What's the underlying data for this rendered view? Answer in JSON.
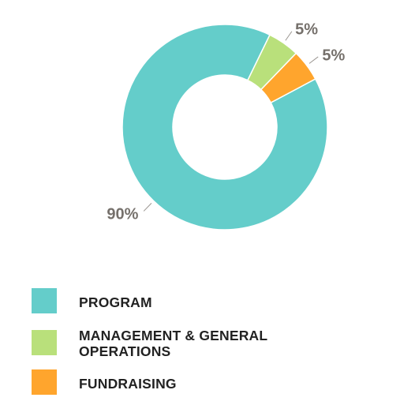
{
  "chart_data": {
    "type": "pie",
    "donut": true,
    "categories": [
      "PROGRAM",
      "MANAGEMENT & GENERAL OPERATIONS",
      "FUNDRAISING"
    ],
    "values": [
      90,
      5,
      5
    ],
    "value_labels": [
      "90%",
      "5%",
      "5%"
    ],
    "colors": [
      "#64cdca",
      "#b9e07b",
      "#ffa52d"
    ],
    "legend_position": "bottom-left",
    "title": "",
    "xlabel": "",
    "ylabel": ""
  },
  "legend": {
    "items": [
      {
        "label": "PROGRAM",
        "color": "#64cdca"
      },
      {
        "label": "MANAGEMENT & GENERAL OPERATIONS",
        "color": "#b9e07b"
      },
      {
        "label": "FUNDRAISING",
        "color": "#ffa52d"
      }
    ]
  }
}
